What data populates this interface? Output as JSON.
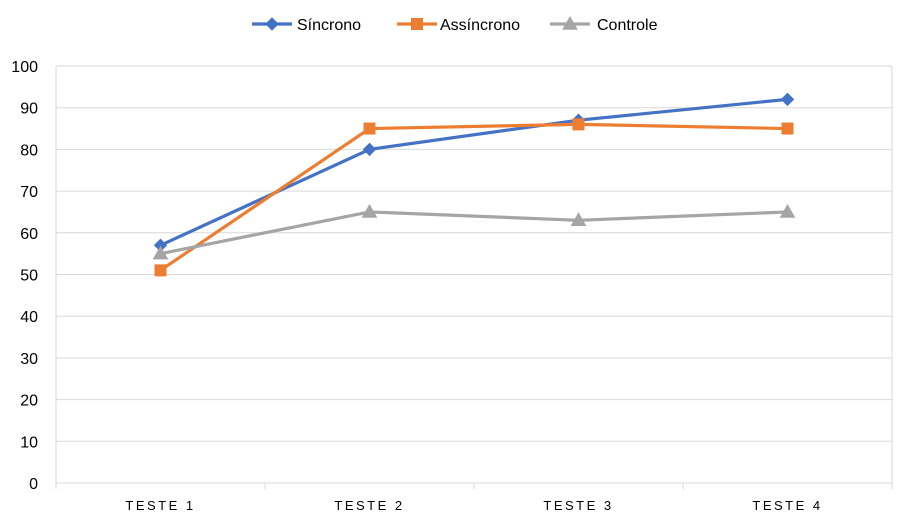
{
  "chart_data": {
    "type": "line",
    "categories": [
      "TESTE 1",
      "TESTE 2",
      "TESTE 3",
      "TESTE 4"
    ],
    "series": [
      {
        "name": "Síncrono",
        "values": [
          57,
          80,
          87,
          92
        ],
        "color": "#4472C4",
        "marker": "diamond"
      },
      {
        "name": "Assíncrono",
        "values": [
          51,
          85,
          86,
          85
        ],
        "color": "#ED7D31",
        "marker": "square"
      },
      {
        "name": "Controle",
        "values": [
          55,
          65,
          63,
          65
        ],
        "color": "#A5A5A5",
        "marker": "triangle"
      }
    ],
    "ylim": [
      0,
      100
    ],
    "yticks": [
      0,
      10,
      20,
      30,
      40,
      50,
      60,
      70,
      80,
      90,
      100
    ],
    "grid": true,
    "legend": "top-center",
    "title": "",
    "xlabel": "",
    "ylabel": ""
  }
}
